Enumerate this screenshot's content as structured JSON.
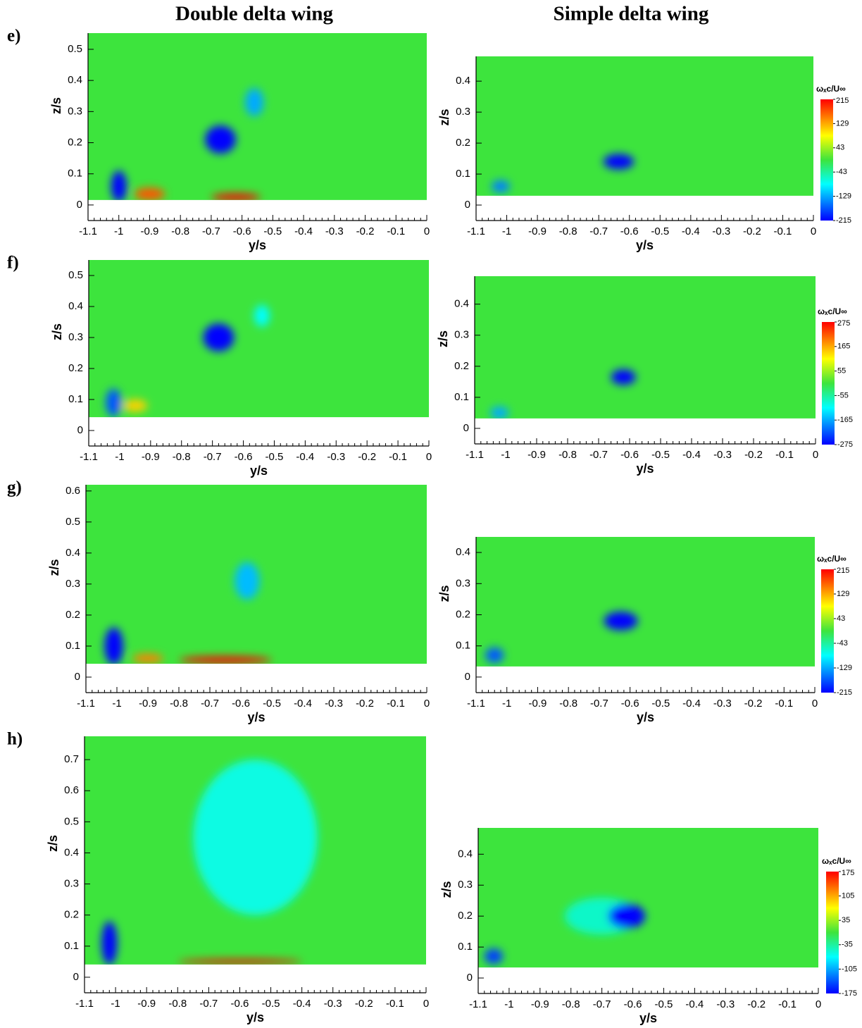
{
  "column_titles": [
    "Double delta wing",
    "Simple delta wing"
  ],
  "chart_data": [
    {
      "type": "contour",
      "label": "e)",
      "xlabel": "y/s",
      "ylabel": "z/s",
      "xlim": [
        -1.1,
        0
      ],
      "ylim": [
        -0.05,
        0.552
      ],
      "xticks": [
        -1.1,
        -1,
        -0.9,
        -0.8,
        -0.7,
        -0.6,
        -0.5,
        -0.4,
        -0.3,
        -0.2,
        -0.1,
        0
      ],
      "yticks": [
        0,
        0.1,
        0.2,
        0.3,
        0.4,
        0.5
      ],
      "surface_z": 0.016,
      "cores": {
        "x": [
          -0.67,
          -0.56,
          -1.0,
          -0.9,
          -0.62
        ],
        "z": [
          0.21,
          0.33,
          0.06,
          0.035,
          0.025
        ],
        "values": [
          -215,
          -129,
          -215,
          172,
          215
        ],
        "rx": [
          0.05,
          0.03,
          0.025,
          0.05,
          0.08
        ],
        "rz": [
          0.045,
          0.045,
          0.05,
          0.02,
          0.012
        ]
      }
    },
    {
      "type": "contour",
      "xlabel": "y/s",
      "ylabel": "z/s",
      "xlim": [
        -1.1,
        0
      ],
      "ylim": [
        -0.05,
        0.48
      ],
      "xticks": [
        -1.1,
        -1,
        -0.9,
        -0.8,
        -0.7,
        -0.6,
        -0.5,
        -0.4,
        -0.3,
        -0.2,
        -0.1,
        0
      ],
      "yticks": [
        0,
        0.1,
        0.2,
        0.3,
        0.4
      ],
      "surface_z": 0.03,
      "cores": {
        "x": [
          -0.635,
          -1.02
        ],
        "z": [
          0.14,
          0.06
        ],
        "values": [
          -215,
          -150
        ],
        "rx": [
          0.05,
          0.03
        ],
        "rz": [
          0.025,
          0.02
        ]
      },
      "colorbar": {
        "title": "ωₓc/U∞",
        "clim": [
          -215,
          215
        ],
        "ticks": [
          215,
          129,
          43,
          -43,
          -129,
          -215
        ]
      }
    },
    {
      "type": "contour",
      "label": "f)",
      "xlabel": "y/s",
      "ylabel": "z/s",
      "xlim": [
        -1.1,
        0
      ],
      "ylim": [
        -0.05,
        0.55
      ],
      "xticks": [
        -1.1,
        -1,
        -0.9,
        -0.8,
        -0.7,
        -0.6,
        -0.5,
        -0.4,
        -0.3,
        -0.2,
        -0.1,
        0
      ],
      "yticks": [
        0,
        0.1,
        0.2,
        0.3,
        0.4,
        0.5
      ],
      "surface_z": 0.043,
      "cores": {
        "x": [
          -0.68,
          -0.54,
          -1.02,
          -0.95
        ],
        "z": [
          0.3,
          0.37,
          0.09,
          0.08
        ],
        "values": [
          -275,
          -110,
          -220,
          140
        ],
        "rx": [
          0.05,
          0.025,
          0.025,
          0.04
        ],
        "rz": [
          0.045,
          0.035,
          0.045,
          0.02
        ]
      }
    },
    {
      "type": "contour",
      "xlabel": "y/s",
      "ylabel": "z/s",
      "xlim": [
        -1.1,
        0
      ],
      "ylim": [
        -0.05,
        0.49
      ],
      "xticks": [
        -1.1,
        -1,
        -0.9,
        -0.8,
        -0.7,
        -0.6,
        -0.5,
        -0.4,
        -0.3,
        -0.2,
        -0.1,
        0
      ],
      "yticks": [
        0,
        0.1,
        0.2,
        0.3,
        0.4
      ],
      "surface_z": 0.032,
      "cores": {
        "x": [
          -0.62,
          -1.02
        ],
        "z": [
          0.165,
          0.05
        ],
        "values": [
          -275,
          -165
        ],
        "rx": [
          0.04,
          0.03
        ],
        "rz": [
          0.025,
          0.02
        ]
      },
      "colorbar": {
        "title": "ωₓc/U∞",
        "clim": [
          -275,
          275
        ],
        "ticks": [
          275,
          165,
          55,
          -55,
          -165,
          -275
        ]
      }
    },
    {
      "type": "contour",
      "label": "g)",
      "xlabel": "y/s",
      "ylabel": "z/s",
      "xlim": [
        -1.1,
        0
      ],
      "ylim": [
        -0.05,
        0.62
      ],
      "xticks": [
        -1.1,
        -1,
        -0.9,
        -0.8,
        -0.7,
        -0.6,
        -0.5,
        -0.4,
        -0.3,
        -0.2,
        -0.1,
        0
      ],
      "yticks": [
        0,
        0.1,
        0.2,
        0.3,
        0.4,
        0.5,
        0.6
      ],
      "surface_z": 0.043,
      "cores": {
        "x": [
          -0.58,
          -1.01,
          -0.65,
          -0.9
        ],
        "z": [
          0.31,
          0.1,
          0.055,
          0.06
        ],
        "values": [
          -120,
          -215,
          215,
          150
        ],
        "rx": [
          0.04,
          0.03,
          0.15,
          0.05
        ],
        "rz": [
          0.06,
          0.06,
          0.012,
          0.015
        ]
      }
    },
    {
      "type": "contour",
      "xlabel": "y/s",
      "ylabel": "z/s",
      "xlim": [
        -1.1,
        0
      ],
      "ylim": [
        -0.05,
        0.45
      ],
      "xticks": [
        -1.1,
        -1,
        -0.9,
        -0.8,
        -0.7,
        -0.6,
        -0.5,
        -0.4,
        -0.3,
        -0.2,
        -0.1,
        0
      ],
      "yticks": [
        0,
        0.1,
        0.2,
        0.3,
        0.4
      ],
      "surface_z": 0.034,
      "cores": {
        "x": [
          -0.63,
          -1.04
        ],
        "z": [
          0.18,
          0.07
        ],
        "values": [
          -215,
          -170
        ],
        "rx": [
          0.055,
          0.03
        ],
        "rz": [
          0.03,
          0.025
        ]
      },
      "colorbar": {
        "title": "ωₓc/U∞",
        "clim": [
          -215,
          215
        ],
        "ticks": [
          215,
          129,
          43,
          -43,
          -129,
          -215
        ]
      }
    },
    {
      "type": "contour",
      "label": "h)",
      "xlabel": "y/s",
      "ylabel": "z/s",
      "xlim": [
        -1.1,
        0
      ],
      "ylim": [
        -0.05,
        0.775
      ],
      "xticks": [
        -1.1,
        -1,
        -0.9,
        -0.8,
        -0.7,
        -0.6,
        -0.5,
        -0.4,
        -0.3,
        -0.2,
        -0.1,
        0
      ],
      "yticks": [
        0,
        0.1,
        0.2,
        0.3,
        0.4,
        0.5,
        0.6,
        0.7
      ],
      "surface_z": 0.041,
      "cores": {
        "x": [
          -0.55,
          -1.02,
          -0.6
        ],
        "z": [
          0.45,
          0.11,
          0.05
        ],
        "values": [
          -60,
          -175,
          175
        ],
        "rx": [
          0.2,
          0.025,
          0.2
        ],
        "rz": [
          0.25,
          0.07,
          0.008
        ]
      }
    },
    {
      "type": "contour",
      "xlabel": "y/s",
      "ylabel": "z/s",
      "xlim": [
        -1.1,
        0
      ],
      "ylim": [
        -0.05,
        0.485
      ],
      "xticks": [
        -1.1,
        -1,
        -0.9,
        -0.8,
        -0.7,
        -0.6,
        -0.5,
        -0.4,
        -0.3,
        -0.2,
        -0.1,
        0
      ],
      "yticks": [
        0,
        0.1,
        0.2,
        0.3,
        0.4
      ],
      "surface_z": 0.034,
      "cores": {
        "x": [
          -0.7,
          -0.62,
          -1.05
        ],
        "z": [
          0.2,
          0.2,
          0.07
        ],
        "values": [
          -50,
          -175,
          -150
        ],
        "rx": [
          0.12,
          0.06,
          0.03
        ],
        "rz": [
          0.06,
          0.04,
          0.025
        ]
      },
      "colorbar": {
        "title": "ωₓc/U∞",
        "clim": [
          -175,
          175
        ],
        "ticks": [
          175,
          105,
          35,
          -35,
          -105,
          -175
        ]
      }
    }
  ]
}
